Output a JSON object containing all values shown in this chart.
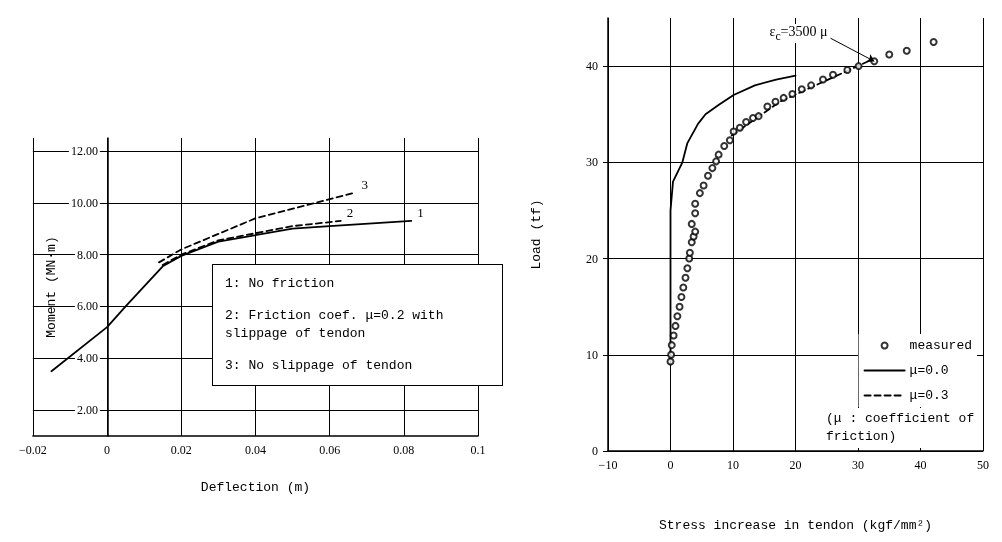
{
  "chart_data": [
    {
      "type": "line",
      "xlabel": "Deflection (m)",
      "ylabel": "Moment (MN·m)",
      "xlim": [
        -0.02,
        0.1
      ],
      "xticks": [
        -0.02,
        0,
        0.02,
        0.04,
        0.06,
        0.08,
        0.1
      ],
      "ylim": [
        1,
        12.5
      ],
      "yticks": [
        {
          "value": 2,
          "label": "2.00"
        },
        {
          "value": 4,
          "label": "4.00"
        },
        {
          "value": 6,
          "label": "6.00"
        },
        {
          "value": 8,
          "label": "8.00"
        },
        {
          "value": 10,
          "label": "10.00"
        },
        {
          "value": 12,
          "label": "12.00"
        }
      ],
      "grid": true,
      "annotations": [
        "1: No friction",
        "2: Friction coef. μ=0.2 with slippage of tendon",
        "3: No slippage of tendon"
      ],
      "series": [
        {
          "name": "1",
          "color": "#000000",
          "line_style": "solid",
          "x": [
            -0.015,
            0,
            0.005,
            0.015,
            0.02,
            0.03,
            0.05,
            0.06,
            0.082
          ],
          "values": [
            3.5,
            5.2,
            6.0,
            7.55,
            7.95,
            8.5,
            9.0,
            9.1,
            9.3
          ]
        },
        {
          "name": "2",
          "color": "#000000",
          "line_style": "dashed",
          "x": [
            0.015,
            0.02,
            0.03,
            0.05,
            0.063
          ],
          "values": [
            7.6,
            8.0,
            8.55,
            9.1,
            9.3
          ]
        },
        {
          "name": "3",
          "color": "#000000",
          "line_style": "dashed",
          "x": [
            0.014,
            0.02,
            0.03,
            0.04,
            0.059,
            0.067
          ],
          "values": [
            7.7,
            8.2,
            8.8,
            9.4,
            10.1,
            10.4
          ]
        }
      ]
    },
    {
      "type": "line",
      "xlabel": "Stress increase in tendon (kgf/mm²)",
      "ylabel": "Load (tf)",
      "xlim": [
        -10,
        50
      ],
      "xticks": [
        -10,
        0,
        10,
        20,
        30,
        40,
        50
      ],
      "ylim": [
        0,
        45
      ],
      "yticks": [
        0,
        10,
        20,
        30,
        40
      ],
      "grid": true,
      "legend": "bottom right",
      "annotations": [
        {
          "text": "ε$_{c}$=3500 μ",
          "x": 32.6,
          "y": 40.5
        },
        "(μ : coefficient of friction)"
      ],
      "series": [
        {
          "name": "measured",
          "type": "scatter",
          "marker": "circle",
          "color": "#000000",
          "x": [
            0,
            0.1,
            0.2,
            0.5,
            0.8,
            1.1,
            1.45,
            1.75,
            2.05,
            2.4,
            2.7,
            3.0,
            3.1,
            3.4,
            3.7,
            3.95,
            3.4,
            3.95,
            3.95,
            4.7,
            5.3,
            6.0,
            6.7,
            7.3,
            7.7,
            8.6,
            9.5,
            10.1,
            11.1,
            12.1,
            13.2,
            14.1,
            15.5,
            16.8,
            18.1,
            19.5,
            21,
            22.5,
            24.4,
            26,
            28.3,
            30.1,
            32.6,
            35,
            37.8,
            42.1
          ],
          "values": [
            9.3,
            10,
            11,
            12,
            13,
            14,
            15,
            16,
            17,
            18,
            19,
            20,
            20.6,
            21.7,
            22.3,
            22.8,
            23.6,
            24.7,
            25.7,
            26.8,
            27.6,
            28.6,
            29.4,
            30.1,
            30.8,
            31.7,
            32.3,
            33.2,
            33.6,
            34.2,
            34.6,
            34.8,
            35.8,
            36.3,
            36.7,
            37.1,
            37.6,
            38,
            38.6,
            39.1,
            39.6,
            40,
            40.5,
            41.2,
            41.6,
            42.5
          ]
        },
        {
          "name": "μ=0.0",
          "color": "#000000",
          "line_style": "solid",
          "x": [
            0,
            0,
            0,
            0.4,
            1.9,
            2.7,
            4.4,
            5.6,
            7.8,
            10.1,
            13.5,
            16.9,
            20
          ],
          "values": [
            9,
            20,
            25,
            28,
            30,
            32,
            34,
            35,
            36,
            37,
            38,
            38.6,
            39
          ]
        },
        {
          "name": "μ=0.3",
          "color": "#000000",
          "line_style": "dashed",
          "x": [
            9.8,
            17.5,
            23.2,
            32.3
          ],
          "values": [
            32.8,
            36.3,
            38,
            40.7
          ]
        }
      ]
    }
  ]
}
